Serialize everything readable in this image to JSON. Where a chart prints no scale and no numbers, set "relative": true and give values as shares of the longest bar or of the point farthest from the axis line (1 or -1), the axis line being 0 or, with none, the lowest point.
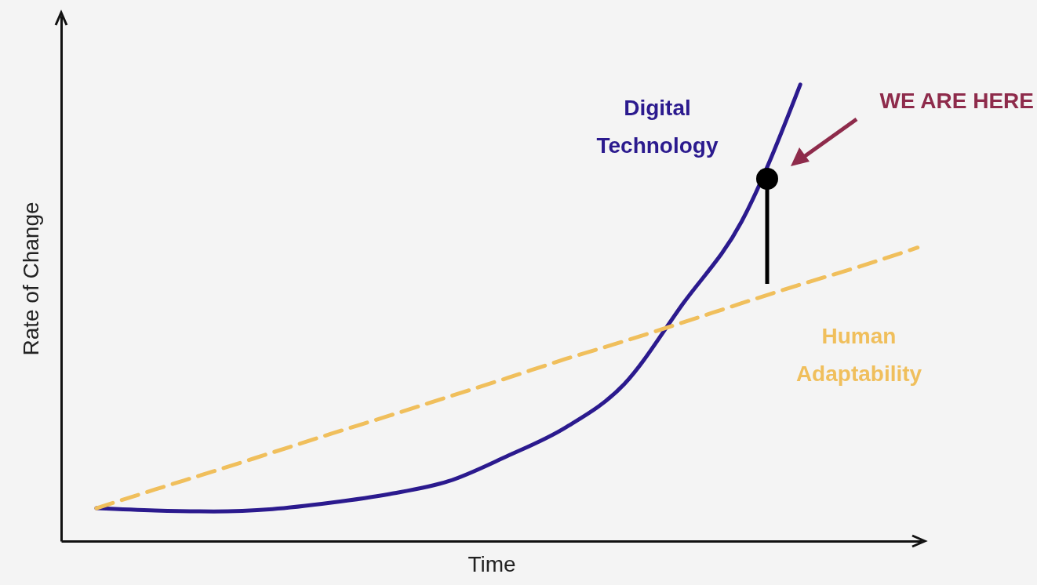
{
  "chart_data": {
    "type": "line",
    "relative": true,
    "xlabel": "Time",
    "ylabel": "Rate of Change",
    "marker": "none",
    "categories": [
      null,
      null,
      null,
      null,
      null,
      null,
      null,
      null,
      null,
      null,
      null,
      null,
      null,
      null,
      null
    ],
    "series": [
      {
        "name": "Digital Technology",
        "color": "#2b1a8e",
        "line_style": "solid",
        "values": [
          0.072,
          0.067,
          0.065,
          0.07,
          0.084,
          0.103,
          0.131,
          0.186,
          0.249,
          0.344,
          0.52,
          0.7,
          1,
          null,
          null
        ]
      },
      {
        "name": "Human Adaptability",
        "color": "#f0bf5c",
        "line_style": "dashed",
        "values": [
          0.072,
          0.113,
          0.153,
          0.194,
          0.235,
          0.275,
          0.316,
          0.357,
          0.399,
          0.438,
          0.479,
          0.521,
          0.562,
          0.601,
          0.643
        ]
      }
    ],
    "annotations": [
      "WE ARE HERE"
    ]
  }
}
